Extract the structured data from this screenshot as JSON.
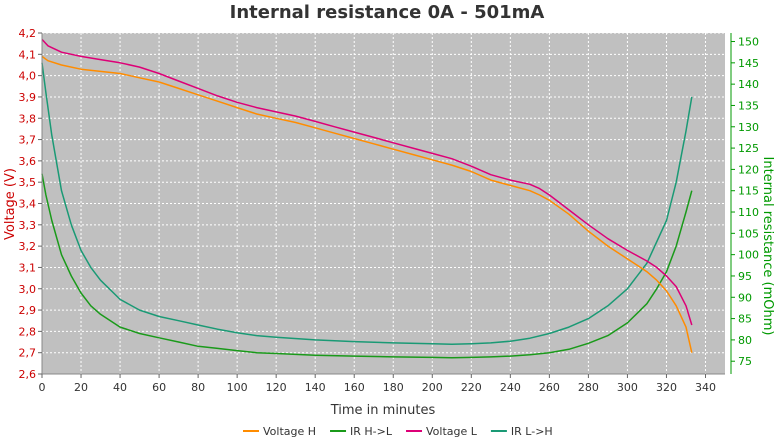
{
  "chart_data": {
    "type": "line",
    "title": "Internal resistance  0A - 501mA",
    "xlabel": "Time in minutes",
    "ylabel_left": "Voltage (V)",
    "ylabel_right": "Internal resistance (mOhm)",
    "xlim": [
      0,
      350
    ],
    "ylim_left": [
      2.6,
      4.2
    ],
    "ylim_right": [
      72,
      152
    ],
    "grid": true,
    "legend_position": "bottom-center",
    "x_ticks": [
      "0",
      "20",
      "40",
      "60",
      "80",
      "100",
      "120",
      "140",
      "160",
      "180",
      "200",
      "220",
      "240",
      "260",
      "280",
      "300",
      "320",
      "340"
    ],
    "y_left_ticks": [
      "2,6",
      "2,7",
      "2,8",
      "2,9",
      "3,0",
      "3,1",
      "3,2",
      "3,3",
      "3,4",
      "3,5",
      "3,6",
      "3,7",
      "3,8",
      "3,9",
      "4,0",
      "4,1",
      "4,2"
    ],
    "y_right_ticks": [
      "75",
      "80",
      "85",
      "90",
      "95",
      "100",
      "105",
      "110",
      "115",
      "120",
      "125",
      "130",
      "135",
      "140",
      "145",
      "150"
    ],
    "colors": {
      "plot_background": "#c0c0c0",
      "grid": "#ffffff",
      "left_axis": "#cc0000",
      "right_axis": "#009900",
      "voltage_h": "#ff8c00",
      "ir_h_l": "#1a9a1a",
      "voltage_l": "#dd0077",
      "ir_l_h": "#1a9a75"
    },
    "series": [
      {
        "name": "Voltage H",
        "axis": "left",
        "color": "#ff8c00",
        "x": [
          0,
          3,
          10,
          20,
          30,
          40,
          50,
          60,
          70,
          80,
          90,
          100,
          110,
          120,
          130,
          140,
          150,
          160,
          170,
          180,
          190,
          200,
          210,
          220,
          230,
          240,
          250,
          255,
          260,
          270,
          280,
          290,
          300,
          305,
          310,
          315,
          320,
          325,
          330,
          333
        ],
        "y": [
          4.09,
          4.07,
          4.05,
          4.03,
          4.02,
          4.01,
          3.99,
          3.97,
          3.94,
          3.91,
          3.88,
          3.85,
          3.82,
          3.8,
          3.78,
          3.755,
          3.73,
          3.705,
          3.68,
          3.655,
          3.63,
          3.605,
          3.58,
          3.55,
          3.51,
          3.485,
          3.46,
          3.44,
          3.415,
          3.35,
          3.27,
          3.2,
          3.14,
          3.11,
          3.08,
          3.04,
          2.99,
          2.92,
          2.82,
          2.7
        ]
      },
      {
        "name": "IR H->L",
        "axis": "right",
        "color": "#1a9a1a",
        "x": [
          0,
          2,
          5,
          10,
          15,
          20,
          25,
          30,
          40,
          50,
          60,
          70,
          80,
          90,
          100,
          110,
          120,
          140,
          160,
          180,
          200,
          210,
          220,
          230,
          240,
          250,
          260,
          270,
          280,
          290,
          300,
          310,
          315,
          320,
          325,
          330,
          333
        ],
        "y": [
          119,
          114,
          108,
          100,
          95,
          91,
          88,
          86,
          83,
          81.5,
          80.5,
          79.5,
          78.5,
          78,
          77.5,
          77,
          76.8,
          76.4,
          76.2,
          76,
          75.9,
          75.8,
          75.9,
          76,
          76.2,
          76.5,
          77,
          77.8,
          79.2,
          81,
          84,
          88.5,
          92,
          96,
          102,
          110,
          115
        ]
      },
      {
        "name": "Voltage L",
        "axis": "left",
        "color": "#dd0077",
        "x": [
          0,
          3,
          10,
          20,
          30,
          40,
          50,
          60,
          70,
          80,
          90,
          100,
          110,
          120,
          130,
          140,
          150,
          160,
          170,
          180,
          190,
          200,
          210,
          220,
          230,
          240,
          250,
          255,
          260,
          270,
          280,
          290,
          300,
          310,
          315,
          320,
          325,
          330,
          333
        ],
        "y": [
          4.17,
          4.14,
          4.11,
          4.09,
          4.075,
          4.06,
          4.04,
          4.01,
          3.975,
          3.94,
          3.905,
          3.875,
          3.85,
          3.83,
          3.81,
          3.785,
          3.76,
          3.735,
          3.71,
          3.685,
          3.66,
          3.635,
          3.61,
          3.575,
          3.535,
          3.51,
          3.49,
          3.47,
          3.44,
          3.37,
          3.3,
          3.235,
          3.18,
          3.13,
          3.1,
          3.06,
          3.01,
          2.92,
          2.83
        ]
      },
      {
        "name": "IR L->H",
        "axis": "right",
        "color": "#1a9a75",
        "x": [
          0,
          2,
          5,
          10,
          15,
          20,
          25,
          30,
          40,
          50,
          60,
          70,
          80,
          90,
          100,
          110,
          120,
          140,
          160,
          180,
          200,
          210,
          220,
          230,
          240,
          250,
          260,
          270,
          280,
          290,
          300,
          310,
          320,
          325,
          330,
          333
        ],
        "y": [
          145,
          138,
          128,
          115,
          107,
          101,
          97,
          94,
          89.5,
          87,
          85.5,
          84.5,
          83.5,
          82.5,
          81.7,
          81,
          80.6,
          80,
          79.6,
          79.3,
          79.1,
          79,
          79.1,
          79.3,
          79.7,
          80.4,
          81.5,
          83,
          85,
          88,
          92,
          98,
          108,
          117,
          129,
          137
        ]
      }
    ]
  }
}
